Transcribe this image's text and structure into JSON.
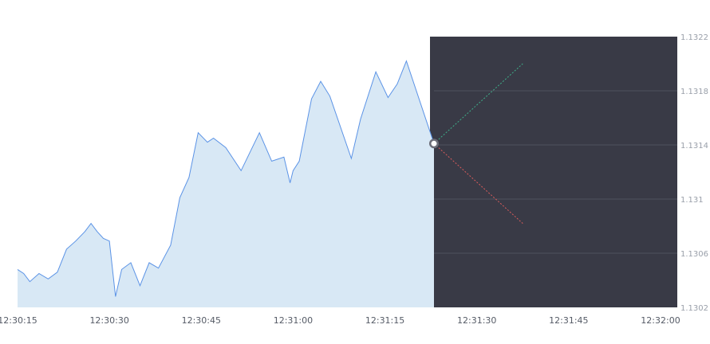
{
  "chart_data": {
    "type": "area",
    "title": "",
    "xlabel": "",
    "ylabel": "",
    "x_axis_unit": "time",
    "xlim": [
      "12:30:15",
      "12:32:00"
    ],
    "ylim": [
      1.1302,
      1.1322
    ],
    "x_ticks": [
      "12:30:15",
      "12:30:30",
      "12:30:45",
      "12:31:00",
      "12:31:15",
      "12:31:30",
      "12:31:45",
      "12:32:00"
    ],
    "y_ticks": [
      "1.1302",
      "1.1306",
      "1.131",
      "1.1314",
      "1.1318",
      "1.1322"
    ],
    "grid": "horizontal lines in future zone",
    "series": [
      {
        "x": [
          "12:30:15.0",
          "12:30:16.0",
          "12:30:17.0",
          "12:30:18.5",
          "12:30:20.0",
          "12:30:21.5",
          "12:30:23.0",
          "12:30:24.5",
          "12:30:26.0",
          "12:30:27.0",
          "12:30:28.0",
          "12:30:29.0",
          "12:30:30.0",
          "12:30:31.0",
          "12:30:32.0",
          "12:30:33.5",
          "12:30:35.0",
          "12:30:36.5",
          "12:30:38.0",
          "12:30:40.0",
          "12:30:41.5",
          "12:30:43.0",
          "12:30:44.5",
          "12:30:46.0",
          "12:30:47.0",
          "12:30:49.0",
          "12:30:51.5",
          "12:30:54.5",
          "12:30:56.5",
          "12:30:58.5",
          "12:30:59.5",
          "12:31:00.0",
          "12:31:01.0",
          "12:31:03.0",
          "12:31:04.5",
          "12:31:06.0",
          "12:31:09.5",
          "12:31:11.0",
          "12:31:13.5",
          "12:31:15.5",
          "12:31:17.0",
          "12:31:18.5"
        ],
        "values": [
          1.13048,
          1.13045,
          1.13039,
          1.13045,
          1.13041,
          1.13046,
          1.13063,
          1.13069,
          1.13076,
          1.13082,
          1.13076,
          1.13071,
          1.13069,
          1.13028,
          1.13048,
          1.13053,
          1.13036,
          1.13053,
          1.13049,
          1.13066,
          1.13101,
          1.13116,
          1.13149,
          1.13142,
          1.13145,
          1.13138,
          1.13121,
          1.13149,
          1.13128,
          1.13131,
          1.13112,
          1.13121,
          1.13128,
          1.13174,
          1.13187,
          1.13176,
          1.1313,
          1.13159,
          1.13194,
          1.13175,
          1.13185,
          1.13202
        ]
      }
    ],
    "current_price": 1.13141,
    "current_time": "12:31:23",
    "up_projection": {
      "from": [
        "12:31:23",
        1.13141
      ],
      "to": [
        "12:31:37.5",
        1.132
      ]
    },
    "down_projection": {
      "from": [
        "12:31:23",
        1.13141
      ],
      "to": [
        "12:31:37.5",
        1.13082
      ]
    },
    "colors": {
      "line": "#5b93e6",
      "area_fill": "#d8e8f5",
      "future_zone": "#393a46",
      "grid": "#50525e",
      "up": "#3fae89",
      "down": "#d95c5c",
      "tick_text": "#555b66"
    }
  }
}
